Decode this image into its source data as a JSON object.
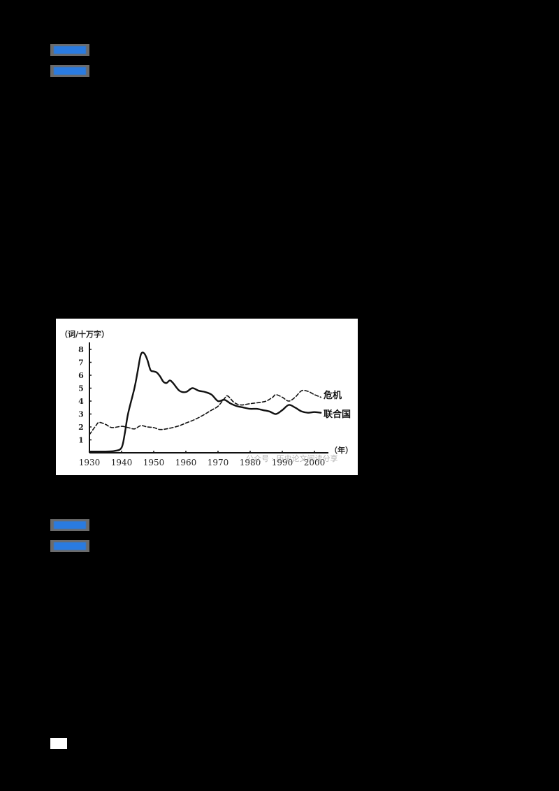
{
  "tags": [
    {
      "label": "",
      "color": "#2a7be0"
    },
    {
      "label": "",
      "color": "#2a7be0"
    },
    {
      "label": "",
      "color": "#2a7be0"
    },
    {
      "label": "",
      "color": "#2a7be0"
    }
  ],
  "chart_data": {
    "type": "line",
    "title": "",
    "ylabel": "（词/十万字）",
    "xlabel": "（年）",
    "x_ticks": [
      "1930",
      "1940",
      "1950",
      "1960",
      "1970",
      "1980",
      "1990",
      "2000"
    ],
    "y_ticks": [
      "1",
      "2",
      "3",
      "4",
      "5",
      "6",
      "7",
      "8"
    ],
    "ylim": [
      0,
      8.5
    ],
    "xlim": [
      1930,
      2003
    ],
    "grid": false,
    "legend_position": "right-inline",
    "watermark": "公众号 · 历史论文阅读分享",
    "series": [
      {
        "name": "危机",
        "style": "dashed",
        "x": [
          1930,
          1932,
          1933,
          1935,
          1937,
          1940,
          1942,
          1944,
          1946,
          1948,
          1950,
          1952,
          1955,
          1958,
          1960,
          1963,
          1966,
          1968,
          1970,
          1972,
          1973,
          1975,
          1977,
          1980,
          1983,
          1985,
          1987,
          1988,
          1990,
          1992,
          1994,
          1996,
          1998,
          2000,
          2002
        ],
        "values": [
          1.4,
          2.1,
          2.35,
          2.2,
          1.95,
          2.05,
          1.95,
          1.85,
          2.1,
          2.0,
          1.95,
          1.8,
          1.9,
          2.1,
          2.3,
          2.6,
          3.0,
          3.3,
          3.6,
          4.2,
          4.4,
          3.9,
          3.7,
          3.8,
          3.9,
          4.0,
          4.3,
          4.5,
          4.3,
          4.0,
          4.3,
          4.8,
          4.75,
          4.5,
          4.3
        ]
      },
      {
        "name": "联合国",
        "style": "solid",
        "x": [
          1930,
          1935,
          1938,
          1940,
          1941,
          1942,
          1944,
          1945,
          1946,
          1947,
          1948,
          1949,
          1950,
          1951,
          1952,
          1953,
          1954,
          1955,
          1956,
          1958,
          1960,
          1962,
          1964,
          1966,
          1968,
          1970,
          1972,
          1974,
          1976,
          1978,
          1980,
          1982,
          1984,
          1986,
          1988,
          1990,
          1992,
          1994,
          1996,
          1998,
          2000,
          2002
        ],
        "values": [
          0.1,
          0.1,
          0.15,
          0.4,
          1.5,
          3.0,
          5.0,
          6.3,
          7.6,
          7.7,
          7.2,
          6.4,
          6.3,
          6.2,
          5.9,
          5.5,
          5.4,
          5.6,
          5.4,
          4.8,
          4.7,
          5.0,
          4.8,
          4.7,
          4.5,
          4.0,
          4.1,
          3.8,
          3.6,
          3.5,
          3.4,
          3.4,
          3.3,
          3.2,
          3.0,
          3.3,
          3.7,
          3.5,
          3.2,
          3.1,
          3.15,
          3.1
        ]
      }
    ]
  }
}
